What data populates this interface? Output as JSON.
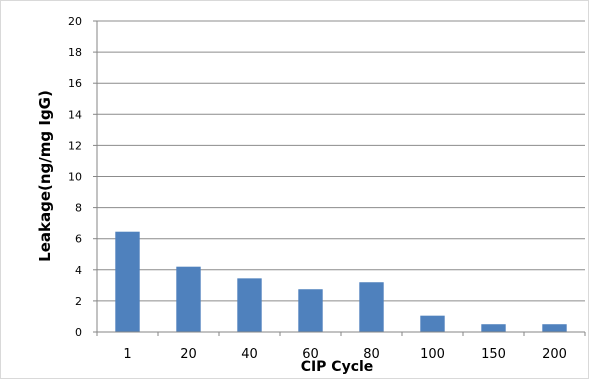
{
  "chart_data": {
    "type": "bar",
    "title": "",
    "xlabel": "CIP Cycle",
    "ylabel": "Leakage(ng/mg IgG)",
    "categories": [
      "1",
      "20",
      "40",
      "60",
      "80",
      "100",
      "150",
      "200"
    ],
    "series": [
      {
        "values": [
          6.45,
          4.2,
          3.45,
          2.75,
          3.2,
          1.05,
          0.5,
          0.5
        ],
        "color": "#4f81bd"
      }
    ],
    "ylim": [
      0,
      20
    ],
    "yticks": [
      0,
      2,
      4,
      6,
      8,
      10,
      12,
      14,
      16,
      18,
      20
    ],
    "grid": true,
    "gridColor": "#8c8c8c",
    "legend": "none"
  }
}
